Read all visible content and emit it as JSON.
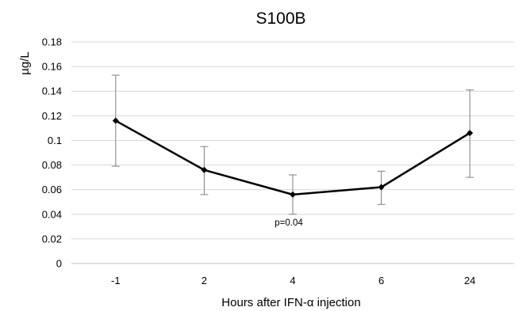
{
  "chart_data": {
    "type": "line",
    "title": "S100B",
    "xlabel": "Hours after IFN-α  injection",
    "ylabel": "µg/L",
    "categories": [
      "-1",
      "2",
      "4",
      "6",
      "24"
    ],
    "series": [
      {
        "values": [
          0.116,
          0.076,
          0.056,
          0.062,
          0.106
        ],
        "error_low": [
          0.079,
          0.056,
          0.04,
          0.048,
          0.07
        ],
        "error_high": [
          0.153,
          0.095,
          0.072,
          0.075,
          0.141
        ],
        "color": "#000000"
      }
    ],
    "ylim": [
      0,
      0.18
    ],
    "yticks": [
      "0",
      "0.02",
      "0.04",
      "0.06",
      "0.08",
      "0.1",
      "0.12",
      "0.14",
      "0.16",
      "0.18"
    ],
    "grid": true,
    "annotations": [
      {
        "text": "p=0.04",
        "category": "4"
      }
    ]
  }
}
